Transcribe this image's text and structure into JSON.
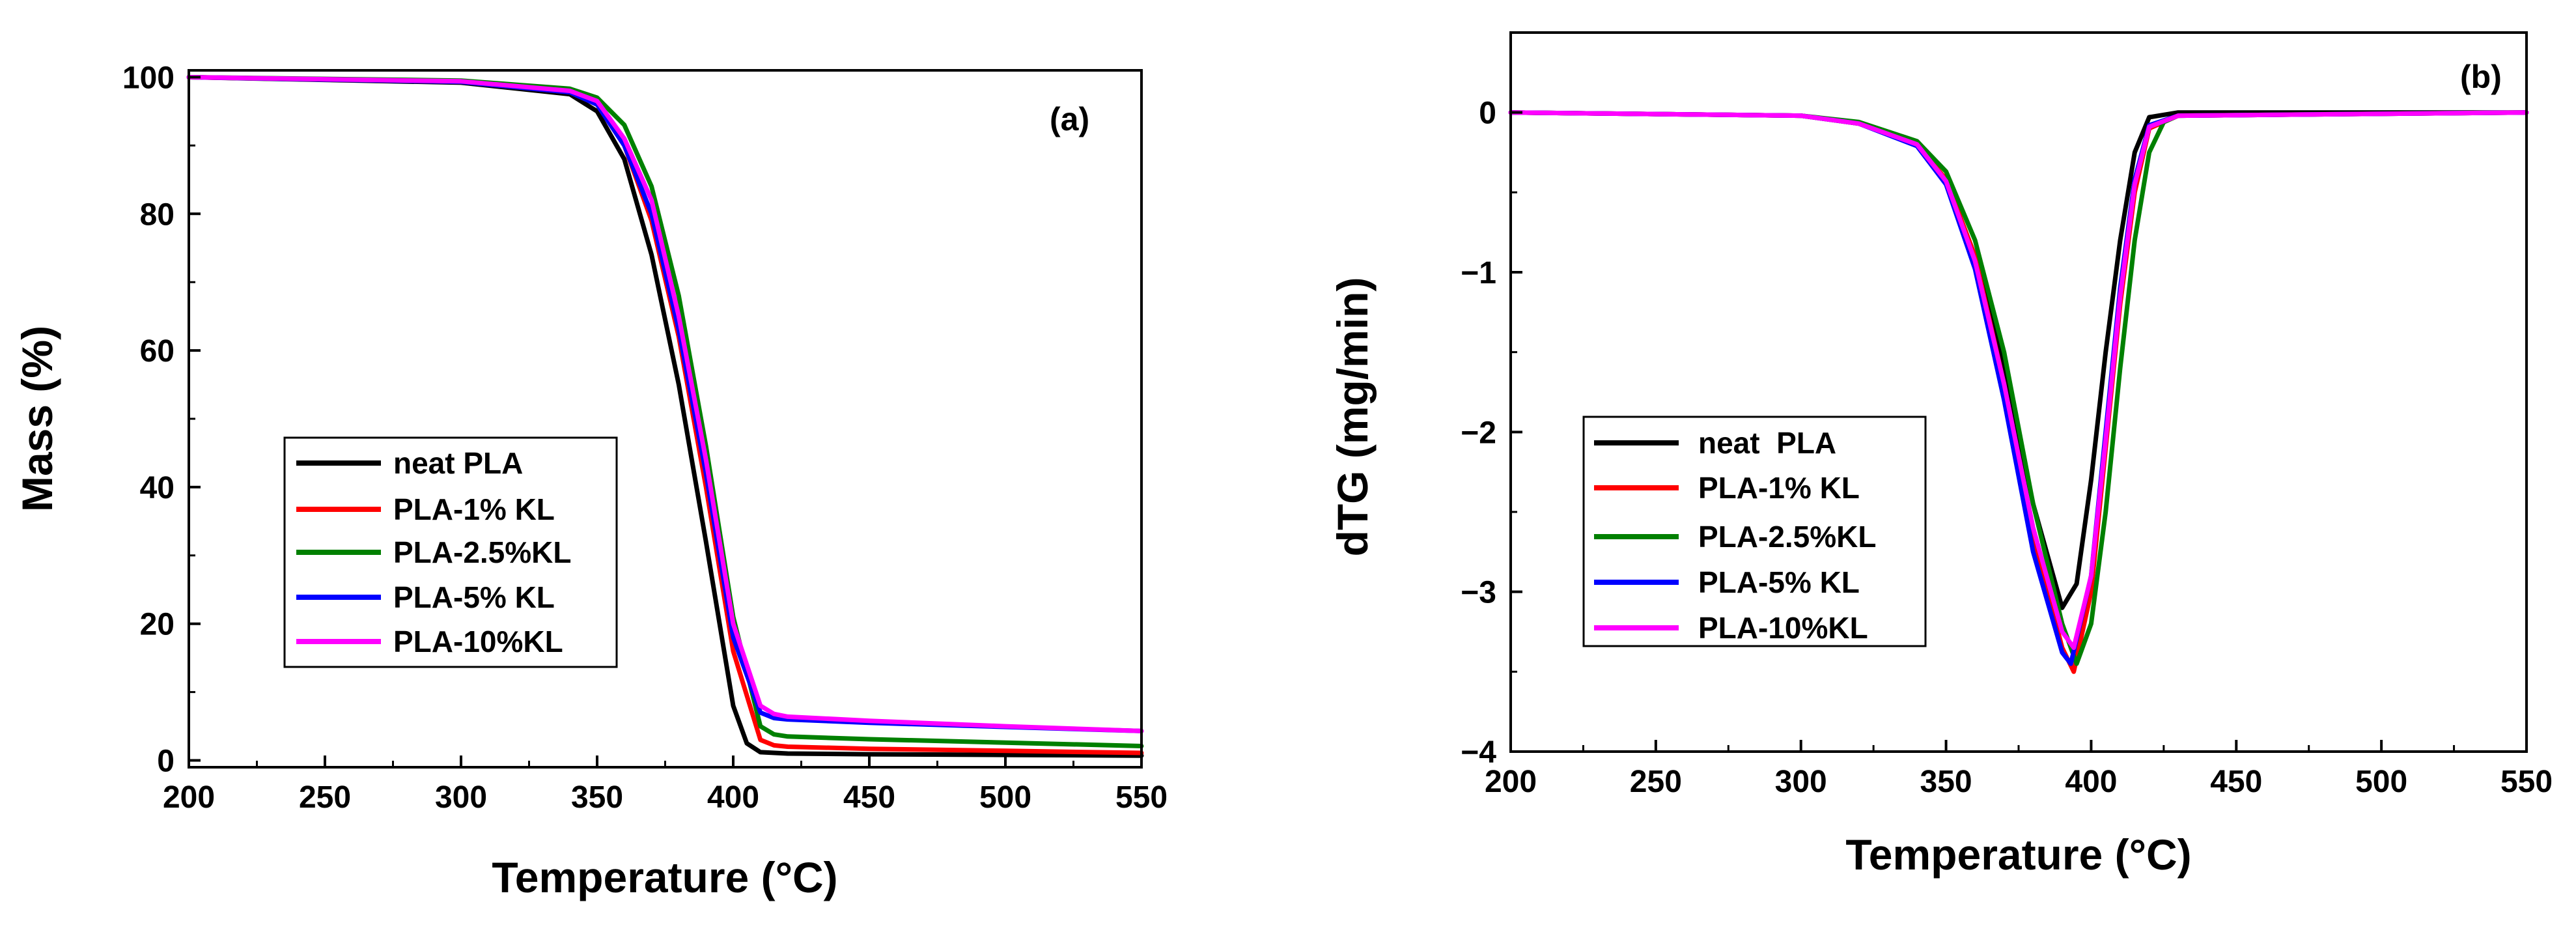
{
  "chart_data": [
    {
      "id": "a",
      "type": "line",
      "panel_label": "(a)",
      "xlabel": "Temperature (°C)",
      "ylabel": "Mass (%)",
      "xlim": [
        200,
        550
      ],
      "ylim": [
        -1,
        101
      ],
      "xticks": [
        200,
        250,
        300,
        350,
        400,
        450,
        500,
        550
      ],
      "yticks": [
        0,
        20,
        40,
        60,
        80,
        100
      ],
      "legend_position": "center-left",
      "series": [
        {
          "name": "neat PLA",
          "color": "#000000",
          "x": [
            200,
            300,
            340,
            350,
            360,
            370,
            380,
            390,
            400,
            405,
            410,
            420,
            450,
            500,
            550
          ],
          "y": [
            100,
            99.2,
            97.5,
            95,
            88,
            74,
            55,
            32,
            8,
            2.5,
            1.2,
            1.0,
            0.9,
            0.8,
            0.7
          ]
        },
        {
          "name": "PLA-1% KL",
          "color": "#ff0000",
          "x": [
            200,
            300,
            340,
            350,
            360,
            370,
            380,
            390,
            400,
            410,
            415,
            420,
            450,
            500,
            550
          ],
          "y": [
            100,
            99.3,
            97.8,
            96,
            90,
            79,
            62,
            40,
            16,
            3,
            2.2,
            2.0,
            1.7,
            1.4,
            1.1
          ]
        },
        {
          "name": "PLA-2.5%KL",
          "color": "#008000",
          "x": [
            200,
            300,
            340,
            350,
            360,
            370,
            380,
            390,
            400,
            410,
            415,
            420,
            450,
            500,
            550
          ],
          "y": [
            100,
            99.5,
            98.3,
            97,
            93,
            84,
            68,
            46,
            21,
            5,
            3.8,
            3.5,
            3.1,
            2.6,
            2.1
          ]
        },
        {
          "name": "PLA-5% KL",
          "color": "#0000ff",
          "x": [
            200,
            300,
            340,
            350,
            360,
            370,
            380,
            390,
            400,
            410,
            415,
            420,
            450,
            500,
            550
          ],
          "y": [
            100,
            99.3,
            97.8,
            96,
            90,
            80,
            63,
            42,
            18,
            7,
            6.2,
            6.0,
            5.5,
            4.9,
            4.3
          ]
        },
        {
          "name": "PLA-10%KL",
          "color": "#ff00ff",
          "x": [
            200,
            300,
            340,
            350,
            360,
            370,
            380,
            390,
            400,
            410,
            415,
            420,
            450,
            500,
            550
          ],
          "y": [
            100,
            99.4,
            98,
            96.5,
            91,
            82,
            65,
            44,
            20,
            8,
            6.8,
            6.4,
            5.8,
            5.0,
            4.3
          ]
        }
      ]
    },
    {
      "id": "b",
      "type": "line",
      "panel_label": "(b)",
      "xlabel": "Temperature (°C)",
      "ylabel": "dTG (mg/min)",
      "xlim": [
        200,
        550
      ],
      "ylim": [
        -4,
        0.5
      ],
      "xticks": [
        200,
        250,
        300,
        350,
        400,
        450,
        500,
        550
      ],
      "yticks": [
        0,
        -1,
        -2,
        -3,
        -4
      ],
      "ytick_labels": [
        "0",
        "−1",
        "−2",
        "−3",
        "−4"
      ],
      "legend_position": "lower-left",
      "series": [
        {
          "name": "neat  PLA",
          "color": "#000000",
          "x": [
            200,
            300,
            320,
            340,
            350,
            360,
            370,
            380,
            390,
            395,
            400,
            405,
            410,
            415,
            420,
            430,
            550
          ],
          "y": [
            0,
            -0.02,
            -0.07,
            -0.2,
            -0.42,
            -0.9,
            -1.6,
            -2.45,
            -3.1,
            -2.95,
            -2.3,
            -1.5,
            -0.8,
            -0.25,
            -0.03,
            0,
            0
          ]
        },
        {
          "name": "PLA-1% KL",
          "color": "#ff0000",
          "x": [
            200,
            300,
            320,
            340,
            350,
            360,
            370,
            380,
            390,
            394,
            400,
            405,
            410,
            415,
            420,
            430,
            550
          ],
          "y": [
            0,
            -0.02,
            -0.07,
            -0.2,
            -0.42,
            -0.9,
            -1.7,
            -2.65,
            -3.35,
            -3.5,
            -3.0,
            -2.1,
            -1.2,
            -0.5,
            -0.1,
            -0.02,
            0
          ]
        },
        {
          "name": "PLA-2.5%KL",
          "color": "#008000",
          "x": [
            200,
            300,
            320,
            340,
            350,
            360,
            370,
            380,
            390,
            395,
            400,
            405,
            410,
            415,
            420,
            425,
            430,
            550
          ],
          "y": [
            0,
            -0.02,
            -0.06,
            -0.18,
            -0.37,
            -0.8,
            -1.5,
            -2.45,
            -3.2,
            -3.45,
            -3.2,
            -2.5,
            -1.6,
            -0.8,
            -0.25,
            -0.06,
            -0.02,
            0
          ]
        },
        {
          "name": "PLA-5% KL",
          "color": "#0000ff",
          "x": [
            200,
            300,
            320,
            340,
            350,
            360,
            370,
            380,
            390,
            393,
            400,
            405,
            410,
            415,
            420,
            430,
            550
          ],
          "y": [
            0,
            -0.02,
            -0.07,
            -0.21,
            -0.45,
            -0.98,
            -1.8,
            -2.75,
            -3.38,
            -3.45,
            -2.9,
            -2.0,
            -1.1,
            -0.42,
            -0.08,
            -0.02,
            0
          ]
        },
        {
          "name": "PLA-10%KL",
          "color": "#ff00ff",
          "x": [
            200,
            300,
            320,
            340,
            350,
            360,
            370,
            380,
            390,
            394,
            400,
            405,
            410,
            415,
            420,
            430,
            550
          ],
          "y": [
            0,
            -0.02,
            -0.07,
            -0.2,
            -0.43,
            -0.93,
            -1.7,
            -2.6,
            -3.25,
            -3.35,
            -2.9,
            -2.05,
            -1.15,
            -0.45,
            -0.09,
            -0.02,
            0
          ]
        }
      ]
    }
  ]
}
